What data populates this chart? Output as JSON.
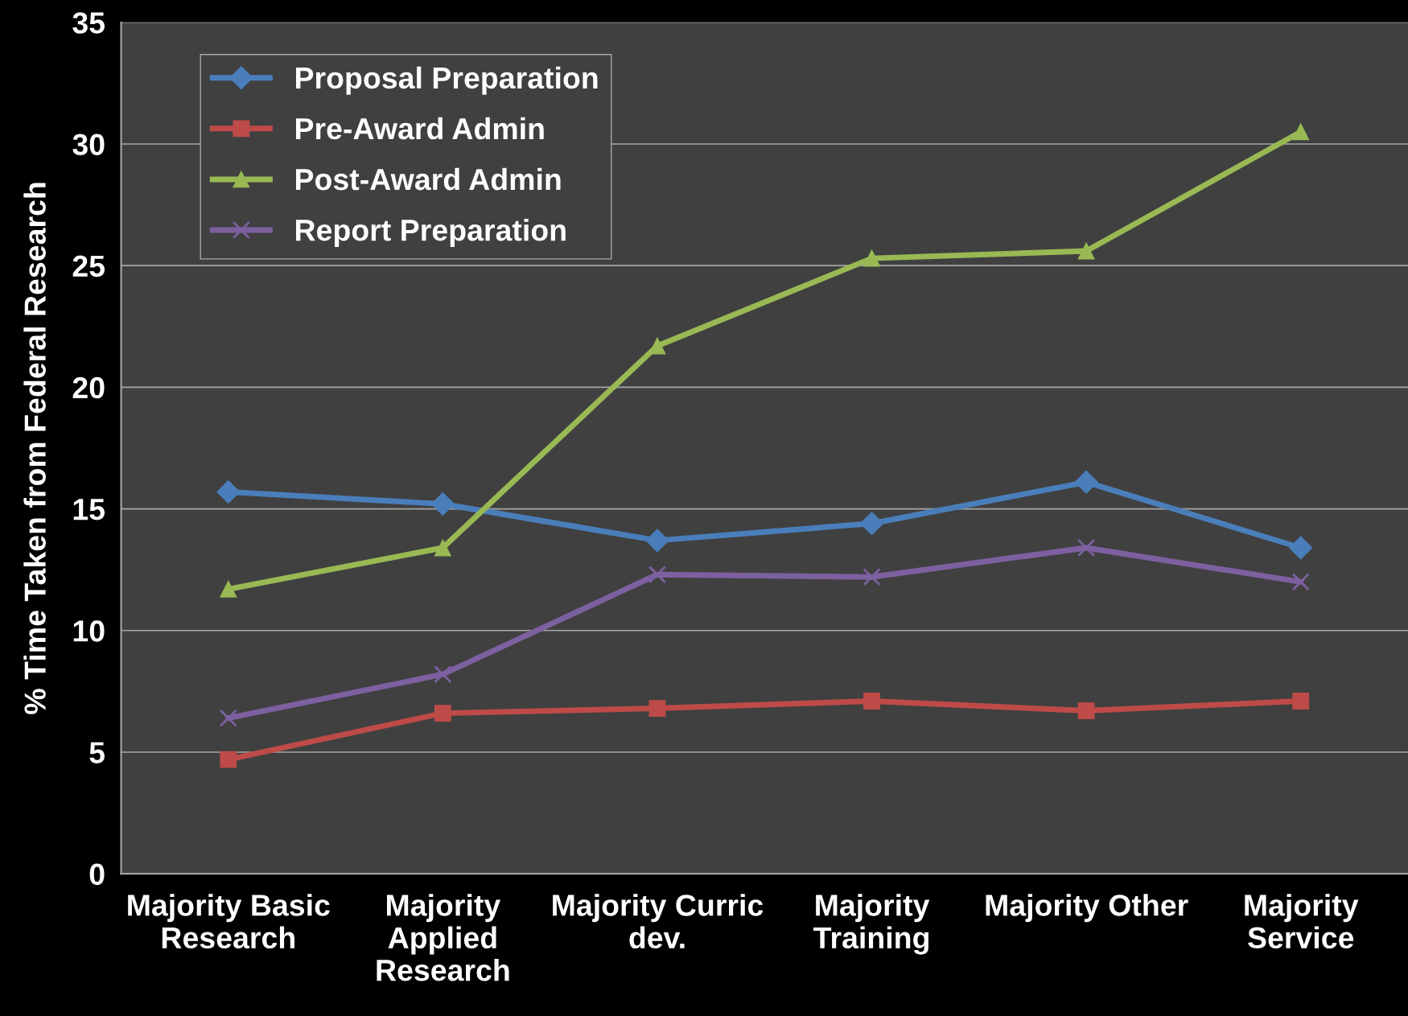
{
  "chart_data": {
    "type": "line",
    "ylabel": "% Time Taken from Federal Research",
    "categories": [
      "Majority Basic\nResearch",
      "Majority\nApplied\nResearch",
      "Majority Curric\ndev.",
      "Majority\nTraining",
      "Majority Other",
      "Majority\nService"
    ],
    "series": [
      {
        "name": "Proposal Preparation",
        "color": "#4a7ebb",
        "marker": "diamond",
        "values": [
          15.7,
          15.2,
          13.7,
          14.4,
          16.1,
          13.4
        ]
      },
      {
        "name": "Pre-Award Admin",
        "color": "#be4b48",
        "marker": "square",
        "values": [
          4.7,
          6.6,
          6.8,
          7.1,
          6.7,
          7.1
        ]
      },
      {
        "name": "Post-Award Admin",
        "color": "#98b954",
        "marker": "triangle",
        "values": [
          11.7,
          13.4,
          21.7,
          25.3,
          25.6,
          30.5
        ]
      },
      {
        "name": "Report Preparation",
        "color": "#7d60a0",
        "marker": "cross",
        "values": [
          6.4,
          8.2,
          12.3,
          12.2,
          13.4,
          12.0
        ]
      }
    ],
    "ylim": [
      0,
      35
    ],
    "yticks": [
      0,
      5,
      10,
      15,
      20,
      25,
      30,
      35
    ],
    "grid": "y",
    "legend": "top left",
    "line_style": "solid"
  }
}
